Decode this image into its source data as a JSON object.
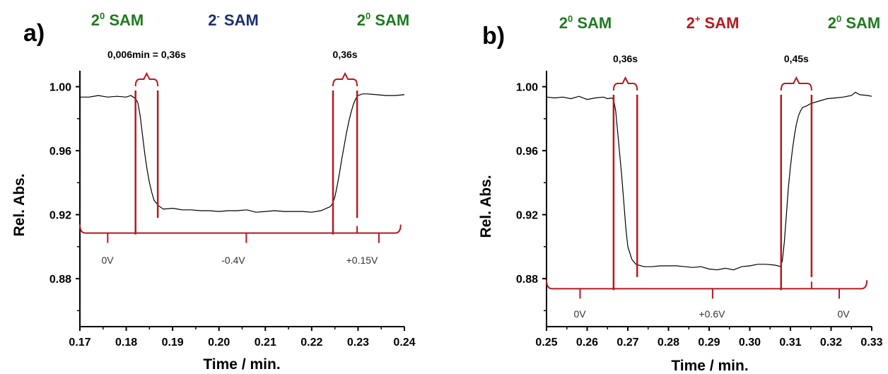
{
  "colors": {
    "red": "#b5191f",
    "green": "#1f7a1f",
    "navy": "#1d2f6f",
    "trace": "#000000"
  },
  "chart_data": [
    {
      "panel": "a)",
      "type": "line",
      "xlabel": "Time / min.",
      "ylabel": "Rel. Abs.",
      "xlim": [
        0.17,
        0.24
      ],
      "ylim": [
        0.85,
        1.01
      ],
      "xticks": [
        "0.17",
        "0.18",
        "0.19",
        "0.20",
        "0.21",
        "0.22",
        "0.23",
        "0.24"
      ],
      "yticks": [
        "0.88",
        "0.92",
        "0.96",
        "1.00"
      ],
      "states": [
        {
          "base": "2",
          "sup": "0",
          "rest": " SAM",
          "color": "green"
        },
        {
          "base": "2",
          "sup": "-",
          "rest": " SAM",
          "color": "navy"
        },
        {
          "base": "2",
          "sup": "0",
          "rest": " SAM",
          "color": "green"
        }
      ],
      "voltages": [
        "0V",
        "-0.4V",
        "+0.15V"
      ],
      "transitions": [
        {
          "label": "0,006min = 0,36s",
          "x1": 0.182,
          "x2": 0.1868
        },
        {
          "label": "0,36s",
          "x1": 0.2246,
          "x2": 0.2298
        }
      ],
      "bracket_y": 0.9085,
      "bracket_x": [
        0.17,
        0.2392
      ],
      "series": [
        {
          "x": [
            0.17,
            0.172,
            0.174,
            0.176,
            0.178,
            0.18,
            0.181,
            0.182,
            0.1825,
            0.183,
            0.1835,
            0.184,
            0.1845,
            0.185,
            0.1855,
            0.186,
            0.187,
            0.188,
            0.19,
            0.192,
            0.194,
            0.196,
            0.198,
            0.2,
            0.202,
            0.204,
            0.206,
            0.208,
            0.21,
            0.212,
            0.214,
            0.216,
            0.218,
            0.22,
            0.222,
            0.224,
            0.2245,
            0.225,
            0.2255,
            0.226,
            0.2265,
            0.227,
            0.2275,
            0.228,
            0.2285,
            0.229,
            0.2295,
            0.23,
            0.231,
            0.232,
            0.234,
            0.236,
            0.238,
            0.24
          ],
          "y": [
            0.9935,
            0.9935,
            0.9945,
            0.9935,
            0.994,
            0.9935,
            0.9945,
            0.9925,
            0.99,
            0.982,
            0.97,
            0.958,
            0.948,
            0.94,
            0.934,
            0.929,
            0.9255,
            0.9235,
            0.924,
            0.923,
            0.923,
            0.9225,
            0.9225,
            0.922,
            0.9225,
            0.9225,
            0.923,
            0.9215,
            0.922,
            0.9225,
            0.922,
            0.922,
            0.922,
            0.9215,
            0.9225,
            0.925,
            0.927,
            0.931,
            0.938,
            0.946,
            0.955,
            0.963,
            0.971,
            0.978,
            0.984,
            0.989,
            0.9925,
            0.9945,
            0.9955,
            0.9955,
            0.995,
            0.9945,
            0.9945,
            0.995
          ]
        }
      ]
    },
    {
      "panel": "b)",
      "type": "line",
      "xlabel": "Time / min.",
      "ylabel": "Rel. Abs.",
      "xlim": [
        0.25,
        0.33
      ],
      "ylim": [
        0.85,
        1.01
      ],
      "xticks": [
        "0.25",
        "0.26",
        "0.27",
        "0.28",
        "0.29",
        "0.30",
        "0.31",
        "0.32",
        "0.33"
      ],
      "yticks": [
        "0.88",
        "0.92",
        "0.96",
        "1.00"
      ],
      "states": [
        {
          "base": "2",
          "sup": "0",
          "rest": " SAM",
          "color": "green"
        },
        {
          "base": "2",
          "sup": "+",
          "rest": " SAM",
          "color": "red"
        },
        {
          "base": "2",
          "sup": "0",
          "rest": " SAM",
          "color": "green"
        }
      ],
      "voltages": [
        "0V",
        "+0.6V",
        "0V"
      ],
      "transitions": [
        {
          "label": "0,36s",
          "x1": 0.2665,
          "x2": 0.2723
        },
        {
          "label": "0,45s",
          "x1": 0.3077,
          "x2": 0.3152
        }
      ],
      "bracket_y": 0.8737,
      "bracket_x": [
        0.25,
        0.3288
      ],
      "series": [
        {
          "x": [
            0.25,
            0.252,
            0.254,
            0.256,
            0.258,
            0.26,
            0.262,
            0.264,
            0.265,
            0.266,
            0.2665,
            0.267,
            0.2675,
            0.268,
            0.2685,
            0.269,
            0.2695,
            0.27,
            0.271,
            0.272,
            0.274,
            0.276,
            0.278,
            0.28,
            0.282,
            0.284,
            0.286,
            0.288,
            0.29,
            0.292,
            0.294,
            0.296,
            0.298,
            0.3,
            0.302,
            0.304,
            0.306,
            0.307,
            0.3075,
            0.308,
            0.3085,
            0.309,
            0.3095,
            0.31,
            0.3105,
            0.311,
            0.3115,
            0.312,
            0.3125,
            0.313,
            0.314,
            0.315,
            0.317,
            0.319,
            0.321,
            0.323,
            0.325,
            0.326,
            0.327,
            0.329,
            0.33
          ],
          "y": [
            0.9935,
            0.993,
            0.9935,
            0.9925,
            0.994,
            0.992,
            0.993,
            0.9935,
            0.9925,
            0.993,
            0.992,
            0.985,
            0.972,
            0.958,
            0.944,
            0.928,
            0.912,
            0.9,
            0.892,
            0.889,
            0.8875,
            0.8875,
            0.888,
            0.888,
            0.888,
            0.8875,
            0.887,
            0.8875,
            0.886,
            0.8855,
            0.8865,
            0.8855,
            0.8875,
            0.888,
            0.889,
            0.889,
            0.8885,
            0.888,
            0.8875,
            0.891,
            0.903,
            0.92,
            0.937,
            0.95,
            0.961,
            0.97,
            0.977,
            0.982,
            0.985,
            0.987,
            0.988,
            0.9895,
            0.991,
            0.9925,
            0.993,
            0.9935,
            0.9945,
            0.9965,
            0.995,
            0.9945,
            0.994
          ]
        }
      ]
    }
  ]
}
